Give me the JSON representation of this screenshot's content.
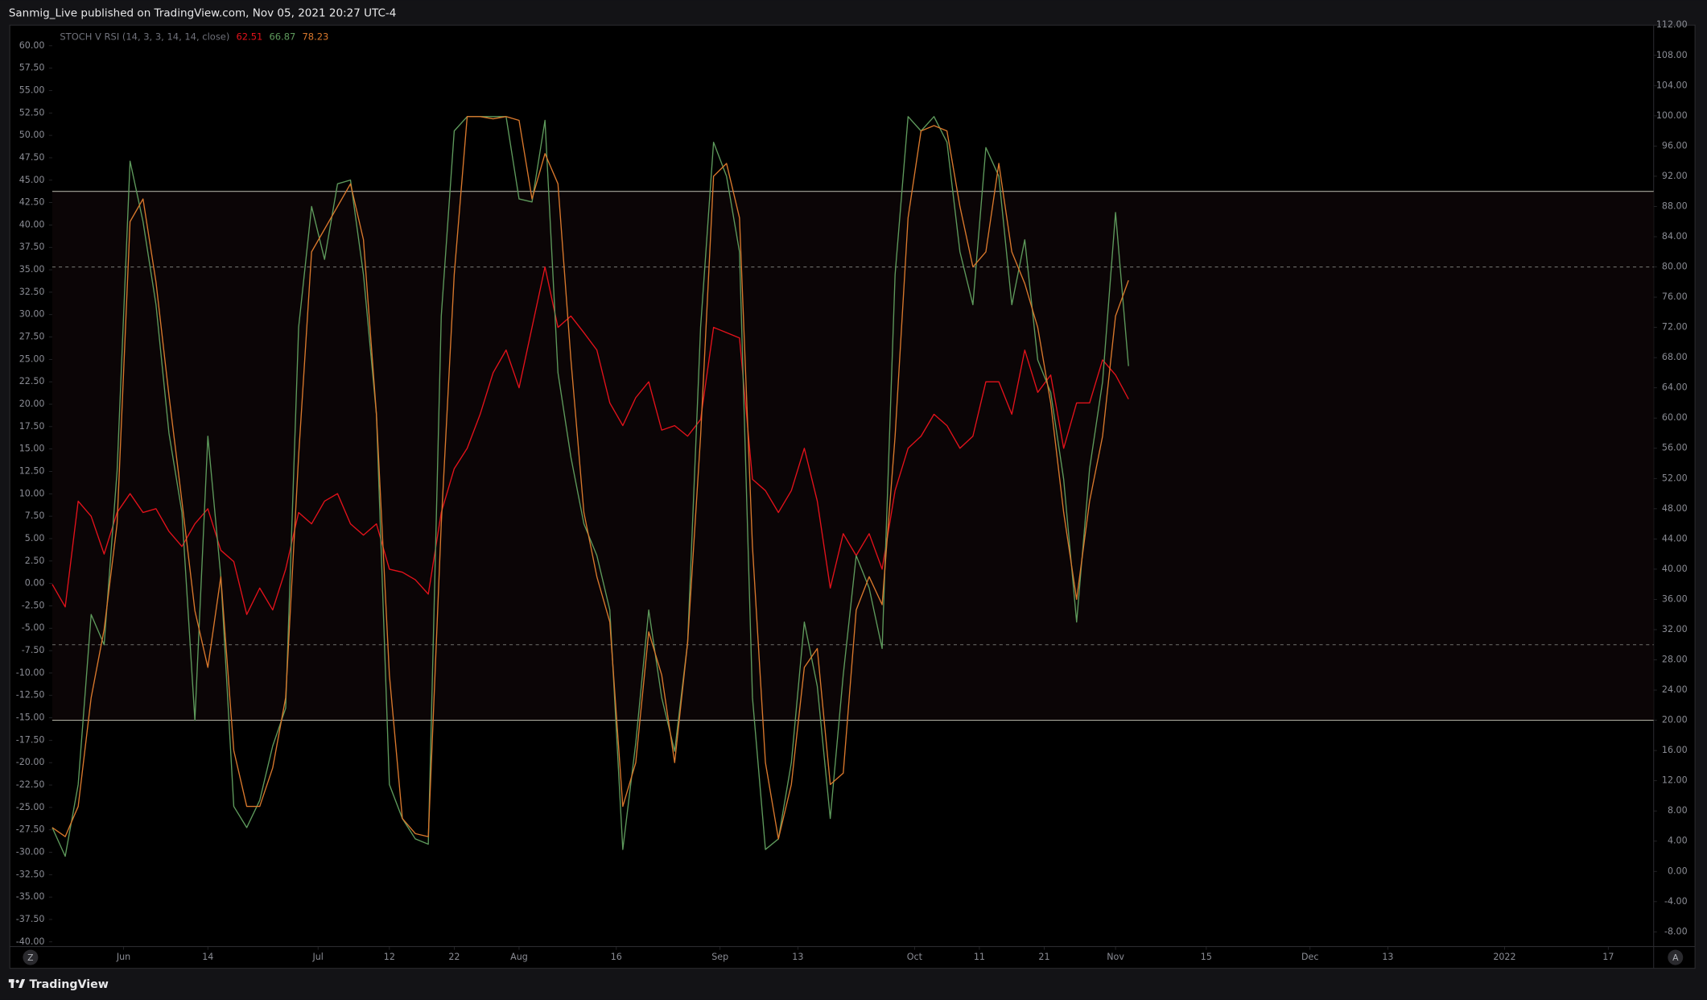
{
  "header": {
    "title": "Sanmig_Live published on TradingView.com, Nov 05, 2021 20:27 UTC-4"
  },
  "controls": {
    "left_button": "Z",
    "right_button": "A"
  },
  "footer": {
    "brand": "TradingView"
  },
  "chart_data": {
    "type": "line",
    "legend_title": "STOCH V RSI (14, 3, 3, 14, 14, close)",
    "x": [
      141,
      143,
      145,
      147,
      149,
      151,
      153,
      155,
      157,
      159,
      161,
      163,
      165,
      167,
      169,
      171,
      173,
      175,
      177,
      179,
      181,
      183,
      185,
      187,
      189,
      191,
      193,
      195,
      197,
      199,
      201,
      203,
      205,
      207,
      209,
      211,
      213,
      215,
      217,
      219,
      221,
      223,
      225,
      227,
      229,
      231,
      233,
      235,
      237,
      239,
      241,
      243,
      245,
      247,
      249,
      251,
      253,
      255,
      257,
      259,
      261,
      263,
      265,
      267,
      269,
      271,
      273,
      275,
      277,
      279,
      281,
      283,
      285,
      287,
      289,
      291,
      293,
      295,
      297,
      299,
      301,
      303,
      305,
      307
    ],
    "xlim": [
      141,
      388
    ],
    "xticks": [
      {
        "value": 152,
        "label": "Jun"
      },
      {
        "value": 165,
        "label": "14"
      },
      {
        "value": 182,
        "label": "Jul"
      },
      {
        "value": 193,
        "label": "12"
      },
      {
        "value": 203,
        "label": "22"
      },
      {
        "value": 213,
        "label": "Aug"
      },
      {
        "value": 228,
        "label": "16"
      },
      {
        "value": 244,
        "label": "Sep"
      },
      {
        "value": 256,
        "label": "13"
      },
      {
        "value": 274,
        "label": "Oct"
      },
      {
        "value": 284,
        "label": "11"
      },
      {
        "value": 294,
        "label": "21"
      },
      {
        "value": 305,
        "label": "Nov"
      },
      {
        "value": 319,
        "label": "15"
      },
      {
        "value": 335,
        "label": "Dec"
      },
      {
        "value": 347,
        "label": "13"
      },
      {
        "value": 365,
        "label": "2022"
      },
      {
        "value": 381,
        "label": "17"
      }
    ],
    "ylim": [
      -40.4,
      62.3
    ],
    "yticks": [
      {
        "value": 60,
        "label": "60.00"
      },
      {
        "value": 57.5,
        "label": "57.50"
      },
      {
        "value": 55,
        "label": "55.00"
      },
      {
        "value": 52.5,
        "label": "52.50"
      },
      {
        "value": 50,
        "label": "50.00"
      },
      {
        "value": 47.5,
        "label": "47.50"
      },
      {
        "value": 45,
        "label": "45.00"
      },
      {
        "value": 42.5,
        "label": "42.50"
      },
      {
        "value": 40,
        "label": "40.00"
      },
      {
        "value": 37.5,
        "label": "37.50"
      },
      {
        "value": 35,
        "label": "35.00"
      },
      {
        "value": 32.5,
        "label": "32.50"
      },
      {
        "value": 30,
        "label": "30.00"
      },
      {
        "value": 27.5,
        "label": "27.50"
      },
      {
        "value": 25,
        "label": "25.00"
      },
      {
        "value": 22.5,
        "label": "22.50"
      },
      {
        "value": 20,
        "label": "20.00"
      },
      {
        "value": 17.5,
        "label": "17.50"
      },
      {
        "value": 15,
        "label": "15.00"
      },
      {
        "value": 12.5,
        "label": "12.50"
      },
      {
        "value": 10,
        "label": "10.00"
      },
      {
        "value": 7.5,
        "label": "7.50"
      },
      {
        "value": 5,
        "label": "5.00"
      },
      {
        "value": 2.5,
        "label": "2.50"
      },
      {
        "value": 0,
        "label": "0.00"
      },
      {
        "value": -2.5,
        "label": "-2.50"
      },
      {
        "value": -5,
        "label": "-5.00"
      },
      {
        "value": -7.5,
        "label": "-7.50"
      },
      {
        "value": -10,
        "label": "-10.00"
      },
      {
        "value": -12.5,
        "label": "-12.50"
      },
      {
        "value": -15,
        "label": "-15.00"
      },
      {
        "value": -17.5,
        "label": "-17.50"
      },
      {
        "value": -20,
        "label": "-20.00"
      },
      {
        "value": -22.5,
        "label": "-22.50"
      },
      {
        "value": -25,
        "label": "-25.00"
      },
      {
        "value": -27.5,
        "label": "-27.50"
      },
      {
        "value": -30,
        "label": "-30.00"
      },
      {
        "value": -32.5,
        "label": "-32.50"
      },
      {
        "value": -35,
        "label": "-35.00"
      },
      {
        "value": -37.5,
        "label": "-37.50"
      },
      {
        "value": -40,
        "label": "-40.00"
      }
    ],
    "y2lim": [
      -9.8,
      112
    ],
    "y2ticks": [
      {
        "value": 112,
        "label": "112.00"
      },
      {
        "value": 108,
        "label": "108.00"
      },
      {
        "value": 104,
        "label": "104.00"
      },
      {
        "value": 100,
        "label": "100.00"
      },
      {
        "value": 96,
        "label": "96.00"
      },
      {
        "value": 92,
        "label": "92.00"
      },
      {
        "value": 88,
        "label": "88.00"
      },
      {
        "value": 84,
        "label": "84.00"
      },
      {
        "value": 80,
        "label": "80.00"
      },
      {
        "value": 76,
        "label": "76.00"
      },
      {
        "value": 72,
        "label": "72.00"
      },
      {
        "value": 68,
        "label": "68.00"
      },
      {
        "value": 64,
        "label": "64.00"
      },
      {
        "value": 60,
        "label": "60.00"
      },
      {
        "value": 56,
        "label": "56.00"
      },
      {
        "value": 52,
        "label": "52.00"
      },
      {
        "value": 48,
        "label": "48.00"
      },
      {
        "value": 44,
        "label": "44.00"
      },
      {
        "value": 40,
        "label": "40.00"
      },
      {
        "value": 36,
        "label": "36.00"
      },
      {
        "value": 32,
        "label": "32.00"
      },
      {
        "value": 28,
        "label": "28.00"
      },
      {
        "value": 24,
        "label": "24.00"
      },
      {
        "value": 20,
        "label": "20.00"
      },
      {
        "value": 16,
        "label": "16.00"
      },
      {
        "value": 12,
        "label": "12.00"
      },
      {
        "value": 8,
        "label": "8.00"
      },
      {
        "value": 4,
        "label": "4.00"
      },
      {
        "value": 0,
        "label": "0.00"
      },
      {
        "value": -4,
        "label": "-4.00"
      },
      {
        "value": -8,
        "label": "-8.00"
      }
    ],
    "hlines": [
      {
        "value": 90,
        "style": "solid"
      },
      {
        "value": 80,
        "style": "dashed"
      },
      {
        "value": 30,
        "style": "dashed"
      },
      {
        "value": 20,
        "style": "solid"
      }
    ],
    "series": [
      {
        "color": "#e3121b",
        "axis": "y2",
        "values": [
          38,
          35,
          49,
          47,
          42,
          47.5,
          50,
          47.5,
          48,
          45,
          43,
          46,
          48,
          42.5,
          41,
          34,
          37.5,
          34.6,
          40,
          47.5,
          46,
          49,
          50,
          46,
          44.5,
          46,
          40,
          39.6,
          38.6,
          36.7,
          47.5,
          53.3,
          56,
          60.5,
          66,
          69,
          64,
          72,
          80,
          72,
          73.5,
          71.3,
          69,
          62,
          59,
          62.7,
          64.8,
          58.4,
          59,
          57.6,
          59.8,
          72,
          71.3,
          70.6,
          51.9,
          50.4,
          47.5,
          50.4,
          56,
          49,
          37.5,
          44.7,
          41.8,
          44.7,
          40,
          50.4,
          56,
          57.6,
          60.5,
          59,
          56,
          57.6,
          64.8,
          64.8,
          60.5,
          69,
          63.4,
          65.7,
          56,
          62,
          62,
          67.7,
          65.7,
          62.51
        ]
      },
      {
        "color": "#5e9a5c",
        "axis": "y2",
        "values": [
          5.8,
          2,
          11.5,
          34,
          30,
          53,
          94,
          86,
          75,
          58,
          47.5,
          20,
          57.6,
          39,
          8.6,
          5.8,
          9.4,
          16.6,
          21.6,
          72,
          88,
          81,
          91,
          91.5,
          79,
          60.5,
          11.5,
          7,
          4.3,
          3.6,
          73.5,
          98,
          99.9,
          99.9,
          99.9,
          99.9,
          89,
          88.6,
          99.4,
          66,
          54.8,
          46,
          41.8,
          34.6,
          2.9,
          17,
          34.6,
          23,
          15.9,
          30.3,
          72,
          96.5,
          92,
          82,
          23,
          2.9,
          4.3,
          14.4,
          33,
          24.5,
          7,
          26,
          41.8,
          37.5,
          29.5,
          79,
          99.9,
          98,
          99.9,
          96.5,
          82,
          75,
          95.8,
          92,
          75,
          83.6,
          67.7,
          63.4,
          51.9,
          33,
          53.3,
          64.8,
          87.2,
          66.87
        ]
      },
      {
        "color": "#d9782c",
        "axis": "y2",
        "values": [
          5.8,
          4.6,
          8.6,
          23,
          32,
          46,
          86,
          89,
          78,
          63,
          49,
          34.5,
          27,
          39,
          16,
          8.6,
          8.6,
          13.7,
          23,
          55,
          82,
          85,
          88,
          91,
          83.6,
          60.5,
          26,
          7,
          5,
          4.6,
          46,
          79,
          99.9,
          99.9,
          99.6,
          99.9,
          99.4,
          89,
          95,
          91,
          67.7,
          47.5,
          39,
          33,
          8.6,
          14.4,
          31.7,
          26,
          14.4,
          30.3,
          57.6,
          92,
          93.7,
          86.5,
          43,
          14.4,
          4.3,
          11.5,
          27,
          29.5,
          11.5,
          13,
          34.6,
          39,
          35.3,
          57.6,
          86.5,
          98,
          98.7,
          98,
          88,
          80,
          82,
          93.7,
          82,
          77.8,
          72,
          62,
          47.5,
          36,
          49,
          57.6,
          73.5,
          78.23
        ]
      }
    ]
  }
}
